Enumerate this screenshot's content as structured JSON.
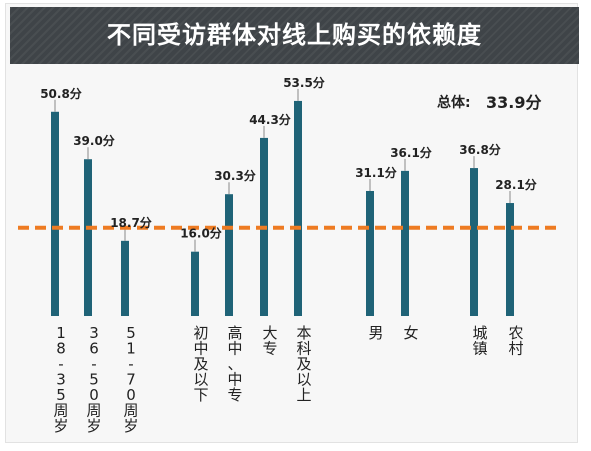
{
  "title": "不同受访群体对线上购买的依赖度",
  "overall": {
    "label": "总体:",
    "value_text": "33.9分"
  },
  "colors": {
    "bar": "#1f6377",
    "average_line": "#ee7b22",
    "header_bg": "#3f4448"
  },
  "chart_data": {
    "type": "bar",
    "title": "不同受访群体对线上购买的依赖度",
    "categories": [
      "18-35周岁",
      "36-50周岁",
      "51-70周岁",
      "初中及以下",
      "高中、中专",
      "大专",
      "本科及以上",
      "男",
      "女",
      "城镇",
      "农村"
    ],
    "values": [
      50.8,
      39.0,
      18.7,
      16.0,
      30.3,
      44.3,
      53.5,
      31.1,
      36.1,
      36.8,
      28.1
    ],
    "value_labels": [
      "50.8分",
      "39.0分",
      "18.7分",
      "16.0分",
      "30.3分",
      "44.3分",
      "53.5分",
      "31.1分",
      "36.1分",
      "36.8分",
      "28.1分"
    ],
    "groups": [
      [
        "18-35周岁",
        "36-50周岁",
        "51-70周岁"
      ],
      [
        "初中及以下",
        "高中、中专",
        "大专",
        "本科及以上"
      ],
      [
        "男",
        "女"
      ],
      [
        "城镇",
        "农村"
      ]
    ],
    "reference_line": {
      "value": 33.9,
      "style": "dashed"
    },
    "ylim": [
      0,
      60
    ],
    "grid": false,
    "legend": "none"
  }
}
